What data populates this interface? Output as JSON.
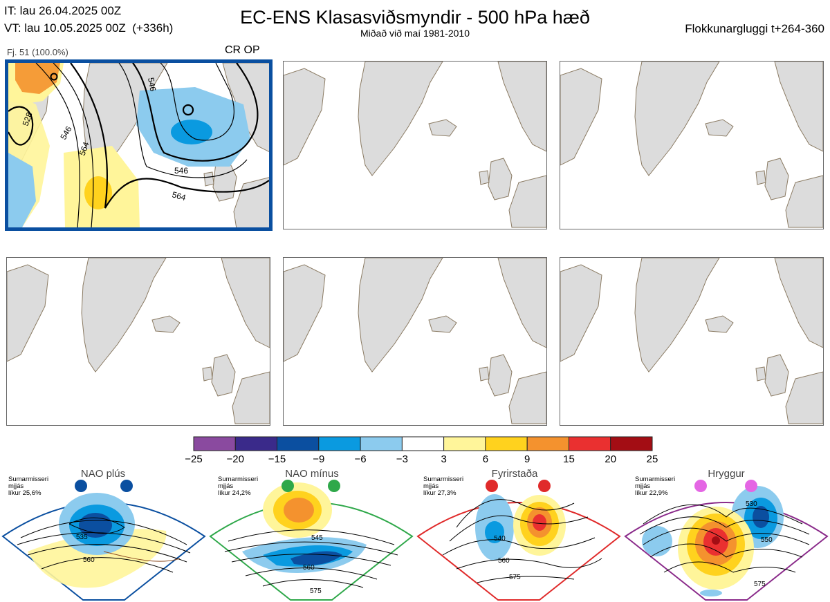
{
  "header": {
    "initial_time": "IT: lau 26.04.2025 00Z",
    "valid_time": "VT: lau 10.05.2025 00Z",
    "lead_time": "(+336h)",
    "title": "EC-ENS Klasasviðsmyndir - 500 hPa hæð",
    "subtitle": "Miðað við maí 1981-2010",
    "cluster_window": "Flokkunargluggi t+264-360"
  },
  "panel1": {
    "member_label": "Fj. 51 (100.0%)",
    "tag": "CR OP",
    "contour_labels": [
      "528",
      "546",
      "564",
      "546",
      "564",
      "546"
    ]
  },
  "colorbar": {
    "labels": [
      "−25",
      "−20",
      "−15",
      "−9",
      "−6",
      "−3",
      "3",
      "6",
      "9",
      "15",
      "20",
      "25"
    ],
    "colors": [
      "#8a4a9f",
      "#3a2a8a",
      "#0b4fa0",
      "#0a9ae0",
      "#8ccbee",
      "#ffffff",
      "#fff59a",
      "#ffd21e",
      "#f4922e",
      "#ea3030",
      "#a30d14"
    ]
  },
  "regimes": [
    {
      "name": "NAO plús",
      "season": "Sumarmisseri",
      "mean": "mjjás",
      "prob": "líkur 25,6%",
      "color": "#0a4fa0",
      "contours": [
        "535",
        "560"
      ]
    },
    {
      "name": "NAO mínus",
      "season": "Sumarmisseri",
      "mean": "mjjás",
      "prob": "líkur 24,2%",
      "color": "#2fa84a",
      "contours": [
        "545",
        "560",
        "575"
      ]
    },
    {
      "name": "Fyrirstaða",
      "season": "Sumarmisseri",
      "mean": "mjjás",
      "prob": "líkur 27,3%",
      "color": "#e02a2a",
      "contours": [
        "540",
        "560",
        "575"
      ]
    },
    {
      "name": "Hryggur",
      "season": "Sumarmisseri",
      "mean": "mjjás",
      "prob": "líkur 22,9%",
      "color": "#8a2a8a",
      "contours": [
        "530",
        "550",
        "575"
      ]
    }
  ]
}
